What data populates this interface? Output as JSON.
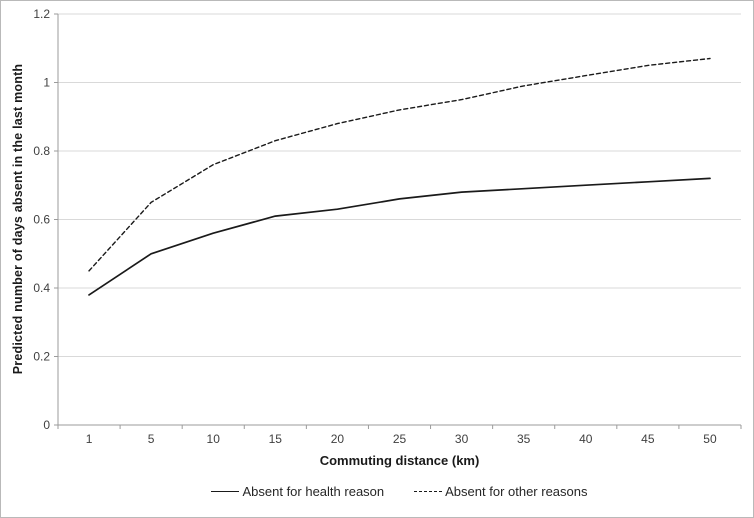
{
  "chart_data": {
    "type": "line",
    "title": "",
    "xlabel": "Commuting distance (km)",
    "ylabel": "Predicted number of days absent in the last month",
    "categories": [
      1,
      5,
      10,
      15,
      20,
      25,
      30,
      35,
      40,
      45,
      50
    ],
    "series": [
      {
        "name": "Absent for health reason",
        "style": "solid",
        "values": [
          0.38,
          0.5,
          0.56,
          0.61,
          0.63,
          0.66,
          0.68,
          0.69,
          0.7,
          0.71,
          0.72
        ]
      },
      {
        "name": "Absent for other reasons",
        "style": "dashed",
        "values": [
          0.45,
          0.65,
          0.76,
          0.83,
          0.88,
          0.92,
          0.95,
          0.99,
          1.02,
          1.05,
          1.07
        ]
      }
    ],
    "ylim": [
      0,
      1.2
    ],
    "y_tick_labels": [
      "0",
      "0.2",
      "0.4",
      "0.6",
      "0.8",
      "1",
      "1.2"
    ],
    "grid": "horizontal",
    "legend_position": "bottom",
    "colors": {
      "line": "#1a1a1a",
      "grid": "#d9d9d9",
      "axis": "#9b9b9b",
      "tick_text": "#404040"
    }
  }
}
